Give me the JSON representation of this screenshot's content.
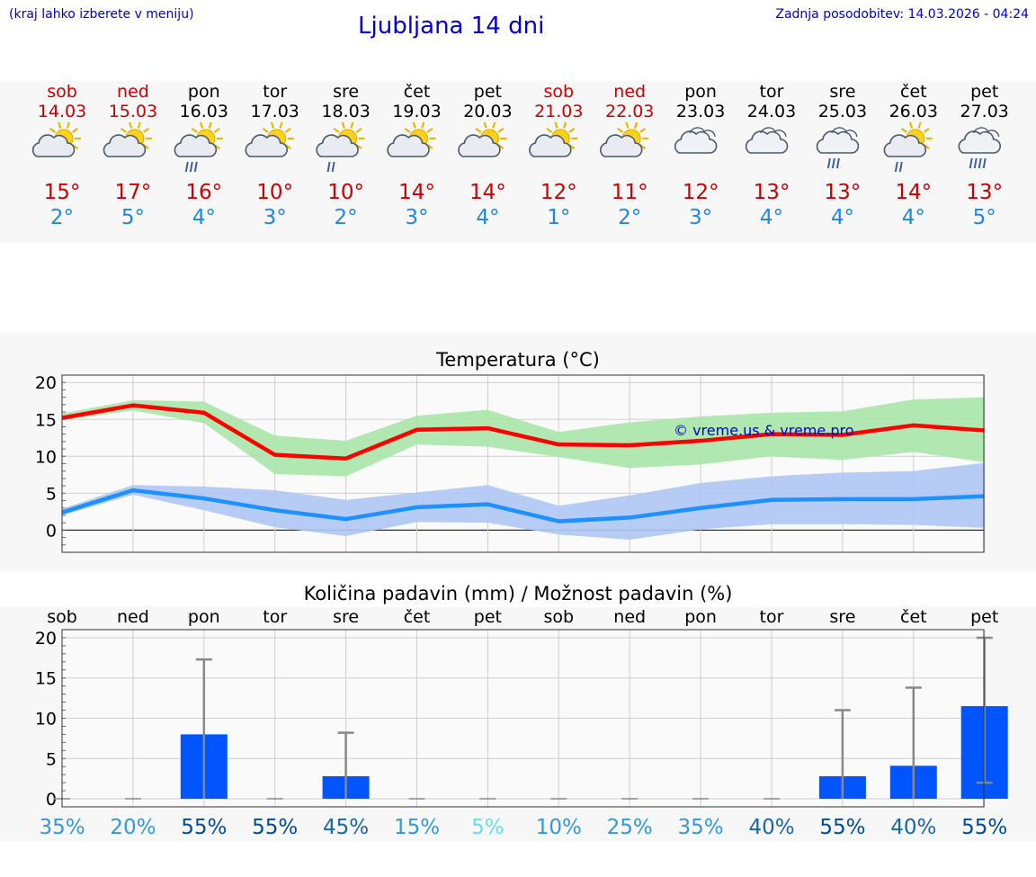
{
  "header": {
    "left_note": "(kraj lahko izberete v meniju)",
    "title": "Ljubljana 14 dni",
    "updated": "Zadnja posodobitev: 14.03.2026 - 04:24"
  },
  "colors": {
    "header_blue": "#0000cc",
    "weekend_red": "#cc0000",
    "max_temp_red": "#cc0000",
    "min_temp_blue": "#1e88e5",
    "max_line": "#ff0000",
    "min_line": "#1e90ff",
    "max_band": "#a8e6a8",
    "min_band": "#aec6f4",
    "bar_blue": "#0055ff",
    "watermark_blue": "#0000dd"
  },
  "days": [
    {
      "name": "sob",
      "date": "14.03",
      "weekend": true,
      "icon": "partly-cloudy-icon",
      "tmax": "15°",
      "tmin": "2°"
    },
    {
      "name": "ned",
      "date": "15.03",
      "weekend": true,
      "icon": "partly-cloudy-icon",
      "tmax": "17°",
      "tmin": "5°"
    },
    {
      "name": "pon",
      "date": "16.03",
      "weekend": false,
      "icon": "partly-cloudy-rain-icon",
      "tmax": "16°",
      "tmin": "4°"
    },
    {
      "name": "tor",
      "date": "17.03",
      "weekend": false,
      "icon": "partly-cloudy-icon",
      "tmax": "10°",
      "tmin": "3°"
    },
    {
      "name": "sre",
      "date": "18.03",
      "weekend": false,
      "icon": "partly-cloudy-light-rain-icon",
      "tmax": "10°",
      "tmin": "2°"
    },
    {
      "name": "čet",
      "date": "19.03",
      "weekend": false,
      "icon": "partly-cloudy-icon",
      "tmax": "14°",
      "tmin": "3°"
    },
    {
      "name": "pet",
      "date": "20.03",
      "weekend": false,
      "icon": "partly-cloudy-icon",
      "tmax": "14°",
      "tmin": "4°"
    },
    {
      "name": "sob",
      "date": "21.03",
      "weekend": true,
      "icon": "partly-cloudy-icon",
      "tmax": "12°",
      "tmin": "1°"
    },
    {
      "name": "ned",
      "date": "22.03",
      "weekend": true,
      "icon": "partly-cloudy-icon",
      "tmax": "11°",
      "tmin": "2°"
    },
    {
      "name": "pon",
      "date": "23.03",
      "weekend": false,
      "icon": "cloudy-icon",
      "tmax": "12°",
      "tmin": "3°"
    },
    {
      "name": "tor",
      "date": "24.03",
      "weekend": false,
      "icon": "cloudy-icon",
      "tmax": "13°",
      "tmin": "4°"
    },
    {
      "name": "sre",
      "date": "25.03",
      "weekend": false,
      "icon": "cloudy-rain-icon",
      "tmax": "13°",
      "tmin": "4°"
    },
    {
      "name": "čet",
      "date": "26.03",
      "weekend": false,
      "icon": "partly-cloudy-light-rain-icon",
      "tmax": "14°",
      "tmin": "4°"
    },
    {
      "name": "pet",
      "date": "27.03",
      "weekend": false,
      "icon": "cloudy-heavy-rain-icon",
      "tmax": "13°",
      "tmin": "5°"
    }
  ],
  "chart_data": [
    {
      "type": "line",
      "title": "Temperatura (°C)",
      "ylim": [
        -3,
        21
      ],
      "yticks": [
        0,
        5,
        10,
        15,
        20
      ],
      "grid": true,
      "x": [
        0,
        1,
        2,
        3,
        4,
        5,
        6,
        7,
        8,
        9,
        10,
        11,
        12,
        13
      ],
      "watermark": "© vreme.us & vreme.pro",
      "series": [
        {
          "name": "max",
          "values": [
            15.2,
            16.9,
            15.9,
            10.2,
            9.7,
            13.6,
            13.8,
            11.6,
            11.5,
            12.1,
            13.0,
            12.9,
            14.2,
            13.5
          ],
          "band_upper": [
            15.8,
            17.6,
            17.4,
            12.8,
            12.1,
            15.5,
            16.3,
            13.3,
            14.6,
            15.4,
            15.9,
            16.1,
            17.7,
            18.0
          ],
          "band_lower": [
            14.9,
            16.2,
            14.5,
            7.6,
            7.3,
            11.6,
            11.3,
            9.9,
            8.4,
            8.9,
            10.0,
            9.5,
            10.6,
            9.2
          ]
        },
        {
          "name": "min",
          "values": [
            2.4,
            5.4,
            4.3,
            2.7,
            1.5,
            3.1,
            3.5,
            1.2,
            1.7,
            3.0,
            4.1,
            4.2,
            4.2,
            4.6
          ],
          "band_upper": [
            2.9,
            6.1,
            5.9,
            5.4,
            4.1,
            5.1,
            6.1,
            3.3,
            4.7,
            6.4,
            7.3,
            7.8,
            8.0,
            9.1
          ],
          "band_lower": [
            2.0,
            4.8,
            2.7,
            0.4,
            -0.8,
            1.1,
            1.0,
            -0.6,
            -1.3,
            0.1,
            0.8,
            0.8,
            0.7,
            0.3
          ]
        }
      ]
    },
    {
      "type": "bar",
      "title": "Količina padavin (mm) / Možnost padavin (%)",
      "categories": [
        "sob",
        "ned",
        "pon",
        "tor",
        "sre",
        "čet",
        "pet",
        "sob",
        "ned",
        "pon",
        "tor",
        "sre",
        "čet",
        "pet"
      ],
      "ylim": [
        -1,
        21
      ],
      "yticks": [
        0,
        5,
        10,
        15,
        20
      ],
      "grid": true,
      "values": [
        0,
        0,
        8.0,
        0,
        2.8,
        0,
        0,
        0,
        0,
        0,
        0,
        2.8,
        4.1,
        11.5
      ],
      "error_upper": [
        0,
        0,
        17.3,
        0,
        8.2,
        0,
        0,
        0,
        0,
        0,
        0,
        11.0,
        13.8,
        20.0
      ],
      "error_lower": [
        0,
        0,
        0,
        0,
        0,
        0,
        0,
        0,
        0,
        0,
        0,
        0,
        0,
        2.0
      ],
      "probability": [
        "35%",
        "20%",
        "55%",
        "55%",
        "45%",
        "15%",
        "5%",
        "10%",
        "25%",
        "35%",
        "40%",
        "55%",
        "40%",
        "55%"
      ],
      "probability_colors": [
        "#3399dd",
        "#3399dd",
        "#004c99",
        "#004c99",
        "#1a66aa",
        "#3399dd",
        "#66ddee",
        "#3399dd",
        "#3399dd",
        "#3399dd",
        "#1a66aa",
        "#004c99",
        "#1a66aa",
        "#004c99"
      ]
    }
  ]
}
